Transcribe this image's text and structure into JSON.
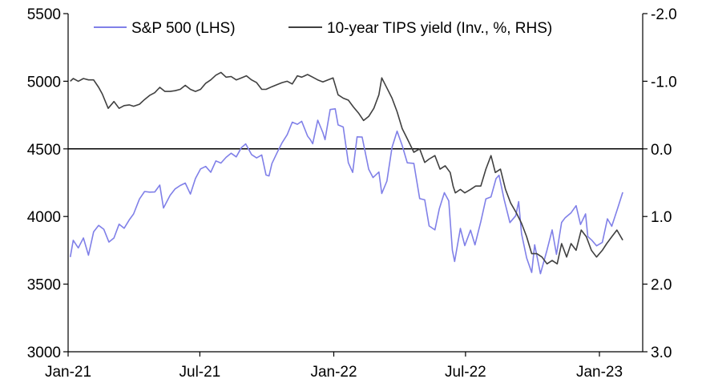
{
  "chart_data": {
    "type": "line",
    "title": "",
    "xlabel": "",
    "ylabel_left": "",
    "ylabel_right": "",
    "x_ticks": [
      "Jan-21",
      "Jul-21",
      "Jan-22",
      "Jul-22",
      "Jan-23"
    ],
    "y_left": {
      "min": 3000,
      "max": 5500,
      "ticks": [
        "3000",
        "3500",
        "4000",
        "4500",
        "5000",
        "5500"
      ]
    },
    "y_right": {
      "min": 3.0,
      "max": -2.0,
      "inverted": true,
      "ticks": [
        "3.0",
        "2.0",
        "1.0",
        "0.0",
        "-1.0",
        "-2.0"
      ]
    },
    "reference_line": {
      "axis": "right",
      "value": 0.0
    },
    "grid": false,
    "legend_position": "top",
    "series": [
      {
        "name": "S&P 500 (LHS)",
        "axis": "left",
        "color": "#8080e8",
        "points": [
          [
            "2021-01-04",
            3700
          ],
          [
            "2021-01-08",
            3824
          ],
          [
            "2021-01-15",
            3768
          ],
          [
            "2021-01-22",
            3841
          ],
          [
            "2021-01-29",
            3714
          ],
          [
            "2021-02-05",
            3886
          ],
          [
            "2021-02-12",
            3934
          ],
          [
            "2021-02-19",
            3906
          ],
          [
            "2021-02-26",
            3811
          ],
          [
            "2021-03-05",
            3841
          ],
          [
            "2021-03-12",
            3943
          ],
          [
            "2021-03-19",
            3913
          ],
          [
            "2021-03-26",
            3975
          ],
          [
            "2021-04-01",
            4019
          ],
          [
            "2021-04-09",
            4129
          ],
          [
            "2021-04-16",
            4185
          ],
          [
            "2021-04-23",
            4180
          ],
          [
            "2021-04-30",
            4181
          ],
          [
            "2021-05-07",
            4232
          ],
          [
            "2021-05-12",
            4063
          ],
          [
            "2021-05-21",
            4156
          ],
          [
            "2021-05-28",
            4204
          ],
          [
            "2021-06-04",
            4229
          ],
          [
            "2021-06-11",
            4247
          ],
          [
            "2021-06-18",
            4166
          ],
          [
            "2021-06-25",
            4281
          ],
          [
            "2021-07-02",
            4352
          ],
          [
            "2021-07-09",
            4370
          ],
          [
            "2021-07-16",
            4327
          ],
          [
            "2021-07-23",
            4411
          ],
          [
            "2021-07-30",
            4395
          ],
          [
            "2021-08-06",
            4437
          ],
          [
            "2021-08-13",
            4468
          ],
          [
            "2021-08-20",
            4441
          ],
          [
            "2021-08-27",
            4509
          ],
          [
            "2021-09-02",
            4537
          ],
          [
            "2021-09-10",
            4458
          ],
          [
            "2021-09-17",
            4433
          ],
          [
            "2021-09-24",
            4455
          ],
          [
            "2021-09-30",
            4307
          ],
          [
            "2021-10-04",
            4300
          ],
          [
            "2021-10-08",
            4391
          ],
          [
            "2021-10-15",
            4471
          ],
          [
            "2021-10-22",
            4545
          ],
          [
            "2021-10-29",
            4605
          ],
          [
            "2021-11-05",
            4697
          ],
          [
            "2021-11-12",
            4682
          ],
          [
            "2021-11-18",
            4704
          ],
          [
            "2021-11-26",
            4595
          ],
          [
            "2021-11-30",
            4567
          ],
          [
            "2021-12-03",
            4538
          ],
          [
            "2021-12-10",
            4712
          ],
          [
            "2021-12-17",
            4620
          ],
          [
            "2021-12-20",
            4568
          ],
          [
            "2021-12-27",
            4791
          ],
          [
            "2022-01-03",
            4796
          ],
          [
            "2022-01-07",
            4677
          ],
          [
            "2022-01-14",
            4662
          ],
          [
            "2022-01-21",
            4397
          ],
          [
            "2022-01-27",
            4326
          ],
          [
            "2022-02-02",
            4589
          ],
          [
            "2022-02-09",
            4587
          ],
          [
            "2022-02-18",
            4349
          ],
          [
            "2022-02-24",
            4288
          ],
          [
            "2022-03-04",
            4329
          ],
          [
            "2022-03-08",
            4170
          ],
          [
            "2022-03-15",
            4262
          ],
          [
            "2022-03-22",
            4511
          ],
          [
            "2022-03-29",
            4631
          ],
          [
            "2022-04-05",
            4525
          ],
          [
            "2022-04-12",
            4397
          ],
          [
            "2022-04-21",
            4393
          ],
          [
            "2022-04-29",
            4132
          ],
          [
            "2022-05-06",
            4123
          ],
          [
            "2022-05-12",
            3930
          ],
          [
            "2022-05-20",
            3901
          ],
          [
            "2022-05-26",
            4057
          ],
          [
            "2022-06-02",
            4176
          ],
          [
            "2022-06-08",
            4115
          ],
          [
            "2022-06-13",
            3750
          ],
          [
            "2022-06-16",
            3667
          ],
          [
            "2022-06-24",
            3912
          ],
          [
            "2022-06-30",
            3785
          ],
          [
            "2022-07-08",
            3899
          ],
          [
            "2022-07-14",
            3790
          ],
          [
            "2022-07-22",
            3962
          ],
          [
            "2022-07-29",
            4130
          ],
          [
            "2022-08-05",
            4145
          ],
          [
            "2022-08-12",
            4280
          ],
          [
            "2022-08-16",
            4305
          ],
          [
            "2022-08-23",
            4128
          ],
          [
            "2022-08-31",
            3955
          ],
          [
            "2022-09-08",
            4006
          ],
          [
            "2022-09-12",
            4110
          ],
          [
            "2022-09-16",
            3873
          ],
          [
            "2022-09-23",
            3693
          ],
          [
            "2022-09-30",
            3586
          ],
          [
            "2022-10-04",
            3791
          ],
          [
            "2022-10-12",
            3577
          ],
          [
            "2022-10-21",
            3752
          ],
          [
            "2022-10-28",
            3901
          ],
          [
            "2022-11-03",
            3720
          ],
          [
            "2022-11-10",
            3956
          ],
          [
            "2022-11-15",
            3991
          ],
          [
            "2022-11-23",
            4027
          ],
          [
            "2022-11-30",
            4080
          ],
          [
            "2022-12-06",
            3941
          ],
          [
            "2022-12-13",
            4019
          ],
          [
            "2022-12-16",
            3852
          ],
          [
            "2022-12-22",
            3822
          ],
          [
            "2022-12-28",
            3783
          ],
          [
            "2023-01-05",
            3808
          ],
          [
            "2023-01-12",
            3983
          ],
          [
            "2023-01-18",
            3928
          ],
          [
            "2023-01-26",
            4060
          ],
          [
            "2023-02-02",
            4179
          ]
        ]
      },
      {
        "name": "10-year TIPS yield (Inv., %, RHS)",
        "axis": "right",
        "color": "#404040",
        "points": [
          [
            "2021-01-04",
            -1.0
          ],
          [
            "2021-01-08",
            -1.04
          ],
          [
            "2021-01-15",
            -1.0
          ],
          [
            "2021-01-22",
            -1.04
          ],
          [
            "2021-01-29",
            -1.02
          ],
          [
            "2021-02-05",
            -1.02
          ],
          [
            "2021-02-12",
            -0.91
          ],
          [
            "2021-02-17",
            -0.81
          ],
          [
            "2021-02-25",
            -0.6
          ],
          [
            "2021-03-05",
            -0.7
          ],
          [
            "2021-03-12",
            -0.6
          ],
          [
            "2021-03-19",
            -0.64
          ],
          [
            "2021-03-26",
            -0.65
          ],
          [
            "2021-04-01",
            -0.63
          ],
          [
            "2021-04-09",
            -0.66
          ],
          [
            "2021-04-16",
            -0.73
          ],
          [
            "2021-04-23",
            -0.79
          ],
          [
            "2021-04-30",
            -0.83
          ],
          [
            "2021-05-07",
            -0.91
          ],
          [
            "2021-05-14",
            -0.85
          ],
          [
            "2021-05-21",
            -0.85
          ],
          [
            "2021-05-28",
            -0.86
          ],
          [
            "2021-06-04",
            -0.88
          ],
          [
            "2021-06-11",
            -0.94
          ],
          [
            "2021-06-18",
            -0.88
          ],
          [
            "2021-06-25",
            -0.85
          ],
          [
            "2021-07-02",
            -0.88
          ],
          [
            "2021-07-09",
            -0.97
          ],
          [
            "2021-07-16",
            -1.02
          ],
          [
            "2021-07-23",
            -1.09
          ],
          [
            "2021-07-30",
            -1.13
          ],
          [
            "2021-08-06",
            -1.06
          ],
          [
            "2021-08-13",
            -1.07
          ],
          [
            "2021-08-20",
            -1.02
          ],
          [
            "2021-08-27",
            -1.05
          ],
          [
            "2021-09-03",
            -1.08
          ],
          [
            "2021-09-10",
            -1.02
          ],
          [
            "2021-09-17",
            -0.98
          ],
          [
            "2021-09-24",
            -0.88
          ],
          [
            "2021-09-30",
            -0.88
          ],
          [
            "2021-10-08",
            -0.92
          ],
          [
            "2021-10-15",
            -0.95
          ],
          [
            "2021-10-22",
            -0.98
          ],
          [
            "2021-10-29",
            -1.0
          ],
          [
            "2021-11-05",
            -0.96
          ],
          [
            "2021-11-12",
            -1.08
          ],
          [
            "2021-11-18",
            -1.06
          ],
          [
            "2021-11-26",
            -1.1
          ],
          [
            "2021-12-03",
            -1.06
          ],
          [
            "2021-12-10",
            -1.02
          ],
          [
            "2021-12-17",
            -0.99
          ],
          [
            "2021-12-24",
            -1.02
          ],
          [
            "2021-12-31",
            -1.05
          ],
          [
            "2022-01-07",
            -0.8
          ],
          [
            "2022-01-14",
            -0.75
          ],
          [
            "2022-01-21",
            -0.72
          ],
          [
            "2022-01-28",
            -0.62
          ],
          [
            "2022-02-04",
            -0.53
          ],
          [
            "2022-02-11",
            -0.42
          ],
          [
            "2022-02-18",
            -0.48
          ],
          [
            "2022-02-25",
            -0.6
          ],
          [
            "2022-03-04",
            -0.8
          ],
          [
            "2022-03-08",
            -1.05
          ],
          [
            "2022-03-15",
            -0.9
          ],
          [
            "2022-03-22",
            -0.75
          ],
          [
            "2022-03-29",
            -0.55
          ],
          [
            "2022-04-05",
            -0.3
          ],
          [
            "2022-04-12",
            -0.15
          ],
          [
            "2022-04-21",
            0.05
          ],
          [
            "2022-04-29",
            0.0
          ],
          [
            "2022-05-06",
            0.2
          ],
          [
            "2022-05-12",
            0.15
          ],
          [
            "2022-05-20",
            0.1
          ],
          [
            "2022-05-27",
            0.3
          ],
          [
            "2022-06-03",
            0.25
          ],
          [
            "2022-06-10",
            0.35
          ],
          [
            "2022-06-14",
            0.55
          ],
          [
            "2022-06-17",
            0.65
          ],
          [
            "2022-06-24",
            0.6
          ],
          [
            "2022-06-30",
            0.65
          ],
          [
            "2022-07-08",
            0.6
          ],
          [
            "2022-07-15",
            0.55
          ],
          [
            "2022-07-22",
            0.55
          ],
          [
            "2022-07-29",
            0.3
          ],
          [
            "2022-08-05",
            0.1
          ],
          [
            "2022-08-11",
            0.35
          ],
          [
            "2022-08-18",
            0.3
          ],
          [
            "2022-08-25",
            0.6
          ],
          [
            "2022-09-01",
            0.8
          ],
          [
            "2022-09-09",
            0.95
          ],
          [
            "2022-09-16",
            1.1
          ],
          [
            "2022-09-23",
            1.3
          ],
          [
            "2022-09-30",
            1.55
          ],
          [
            "2022-10-07",
            1.55
          ],
          [
            "2022-10-14",
            1.6
          ],
          [
            "2022-10-21",
            1.7
          ],
          [
            "2022-10-28",
            1.65
          ],
          [
            "2022-11-04",
            1.7
          ],
          [
            "2022-11-10",
            1.4
          ],
          [
            "2022-11-17",
            1.6
          ],
          [
            "2022-11-23",
            1.4
          ],
          [
            "2022-11-30",
            1.5
          ],
          [
            "2022-12-07",
            1.2
          ],
          [
            "2022-12-14",
            1.3
          ],
          [
            "2022-12-21",
            1.5
          ],
          [
            "2022-12-28",
            1.6
          ],
          [
            "2023-01-05",
            1.5
          ],
          [
            "2023-01-11",
            1.4
          ],
          [
            "2023-01-18",
            1.3
          ],
          [
            "2023-01-25",
            1.2
          ],
          [
            "2023-02-02",
            1.35
          ]
        ]
      }
    ]
  }
}
